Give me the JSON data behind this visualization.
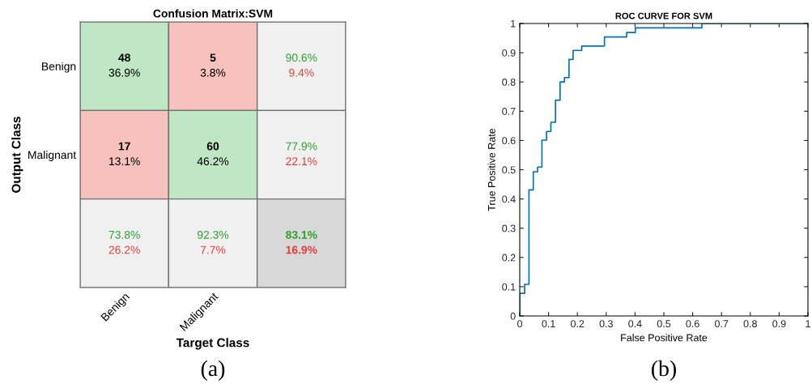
{
  "chart_data": [
    {
      "type": "heatmap",
      "title": "Confusion Matrix:SVM",
      "xlabel": "Target Class",
      "ylabel": "Output Class",
      "categories": [
        "Benign",
        "Malignant",
        null
      ],
      "y_categories": [
        "Benign",
        "Malignant",
        null
      ],
      "cells": [
        [
          48,
          5,
          90.6
        ],
        [
          17,
          60,
          77.9
        ],
        [
          73.8,
          92.3,
          83.1
        ]
      ],
      "cell_labels": [
        [
          "48",
          "5",
          "90.6%"
        ],
        [
          "17",
          "60",
          "77.9%"
        ],
        [
          "73.8%",
          "92.3%",
          "83.1%"
        ]
      ],
      "annotations": [
        "36.9%",
        "3.8%",
        "9.4%",
        "13.1%",
        "46.2%",
        "22.1%",
        "26.2%",
        "7.7%",
        "16.9%",
        "(a)"
      ]
    },
    {
      "type": "step",
      "title": "ROC CURVE FOR SVM",
      "xlabel": "False Positive Rate",
      "ylabel": "True Positive Rate",
      "x": [
        0,
        0,
        0.017,
        0.032,
        0.047,
        0.062,
        0.077,
        0.093,
        0.108,
        0.124,
        0.14,
        0.155,
        0.171,
        0.185,
        0.215,
        0.294,
        0.371,
        0.401,
        0.632,
        1
      ],
      "values": [
        0,
        0.077,
        0.108,
        0.431,
        0.493,
        0.509,
        0.601,
        0.631,
        0.662,
        0.738,
        0.8,
        0.815,
        0.877,
        0.908,
        0.923,
        0.954,
        0.969,
        0.985,
        1,
        1
      ],
      "color": "#0072bd",
      "xlim": [
        0,
        1
      ],
      "ylim": [
        0,
        1
      ],
      "xticks": [
        0,
        0.1,
        0.2,
        0.3,
        0.4,
        0.5,
        0.6,
        0.7,
        0.8,
        0.9,
        1
      ],
      "yticks": [
        0,
        0.1,
        0.2,
        0.3,
        0.4,
        0.5,
        0.6,
        0.7,
        0.8,
        0.9,
        1
      ],
      "grid": false,
      "annotations": [
        "(b)"
      ]
    }
  ]
}
